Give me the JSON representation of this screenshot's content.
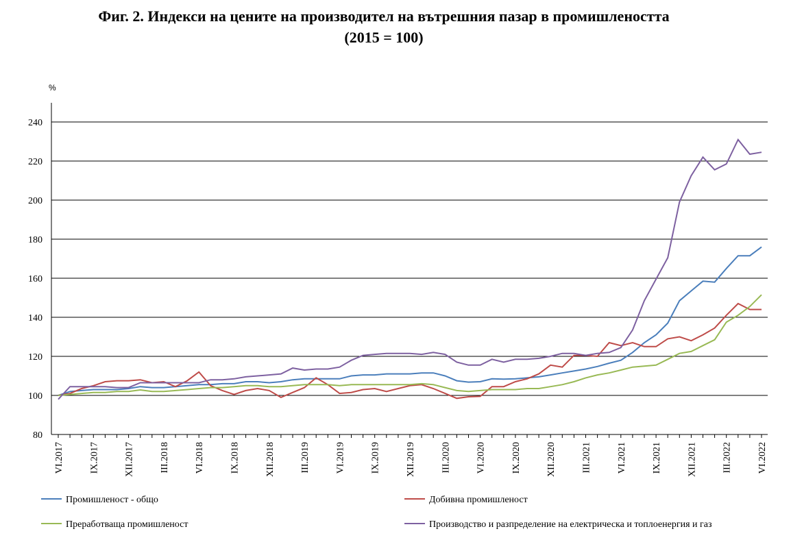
{
  "chart_data": {
    "type": "line",
    "title": "Фиг. 2. Индекси на цените на производител на вътрешния пазар в промишлеността",
    "subtitle": "(2015 = 100)",
    "y_label": "%",
    "categories": [
      "VI.2017",
      null,
      null,
      "IX.2017",
      null,
      null,
      "XII.2017",
      null,
      null,
      "III.2018",
      null,
      null,
      "VI.2018",
      null,
      null,
      "IX.2018",
      null,
      null,
      "XII.2018",
      null,
      null,
      "III.2019",
      null,
      null,
      "VI.2019",
      null,
      null,
      "IX.2019",
      null,
      null,
      "XII.2019",
      null,
      null,
      "III.2020",
      null,
      null,
      "VI.2020",
      null,
      null,
      "IX.2020",
      null,
      null,
      "XII.2020",
      null,
      null,
      "III.2021",
      null,
      null,
      "VI.2021",
      null,
      null,
      "IX.2021",
      null,
      null,
      "XII.2021",
      null,
      null,
      "III.2022",
      null,
      null,
      "VI.2022"
    ],
    "ylim": [
      80,
      240
    ],
    "yticks": [
      80,
      100,
      120,
      140,
      160,
      180,
      200,
      220,
      240
    ],
    "grid": true,
    "series": [
      {
        "name": "Промишленост - общо",
        "color": "#4a7ebb",
        "values": [
          100,
          102,
          102.5,
          103,
          103,
          103,
          103.5,
          104.5,
          104,
          104,
          104.5,
          105,
          105.5,
          105.5,
          106,
          106,
          107,
          107,
          106.5,
          107,
          108,
          108.5,
          108.5,
          108.5,
          108.5,
          110,
          110.5,
          110.5,
          111,
          111,
          111,
          111.5,
          111.5,
          110,
          107.5,
          106.8,
          107,
          108.5,
          108.3,
          108.5,
          109,
          109.5,
          110.5,
          111.5,
          112.5,
          113.5,
          114.8,
          116.5,
          118,
          122,
          127,
          131,
          137,
          148.5,
          153.5,
          158.5,
          158,
          165,
          171.5,
          171.5,
          176
        ]
      },
      {
        "name": "Добивна промишленост",
        "color": "#be4b48",
        "values": [
          100,
          101,
          103.5,
          105,
          107,
          107.5,
          107.5,
          108,
          106.5,
          107,
          104.5,
          107.5,
          112,
          105,
          102.5,
          100.5,
          102.5,
          103.5,
          102.5,
          99,
          101.5,
          104,
          109,
          105.5,
          101,
          101.5,
          103,
          103.5,
          102,
          103.5,
          105,
          105.5,
          103.5,
          101,
          98.5,
          99.3,
          99.5,
          104.5,
          104.5,
          107,
          108.5,
          111,
          115.5,
          114.5,
          120.5,
          120.5,
          120,
          127,
          125.5,
          127,
          125,
          125,
          129,
          130,
          128,
          131,
          134.5,
          141,
          147,
          144,
          144
        ]
      },
      {
        "name": "Преработваща промишленост",
        "color": "#98b954",
        "values": [
          100,
          100.5,
          101,
          101.5,
          101.5,
          102,
          102,
          102.8,
          102,
          102,
          102.5,
          103,
          103.5,
          104,
          104,
          104.5,
          105,
          105,
          104.5,
          104.5,
          105,
          105.5,
          105.5,
          105.5,
          105,
          105.5,
          105.5,
          105.5,
          105.5,
          105.5,
          105.5,
          106,
          105.5,
          104,
          102.5,
          102,
          102.5,
          103,
          103,
          103,
          103.5,
          103.5,
          104.5,
          105.5,
          107,
          109,
          110.5,
          111.5,
          113,
          114.5,
          115,
          115.5,
          118.5,
          121.5,
          122.5,
          125.5,
          128.5,
          137.5,
          141,
          145.5,
          151.5
        ]
      },
      {
        "name": "Производство и разпределение на електрическа и топлоенергия  и газ",
        "color": "#7d60a0",
        "values": [
          98,
          104.5,
          104.5,
          104.5,
          104.5,
          104,
          104,
          106.5,
          106.5,
          106.5,
          106.5,
          106.5,
          106.5,
          108,
          108,
          108.5,
          109.5,
          110,
          110.5,
          111,
          114,
          113,
          113.5,
          113.5,
          114.5,
          118,
          120.5,
          121,
          121.5,
          121.5,
          121.5,
          121,
          122,
          121,
          117,
          115.5,
          115.5,
          118.5,
          117,
          118.5,
          118.5,
          119,
          120,
          121.5,
          121.5,
          120.5,
          121.5,
          122,
          124.5,
          133.5,
          148.5,
          159.5,
          170.5,
          199,
          212.5,
          222,
          215.5,
          218.5,
          231,
          223.5,
          224.5
        ]
      }
    ]
  }
}
